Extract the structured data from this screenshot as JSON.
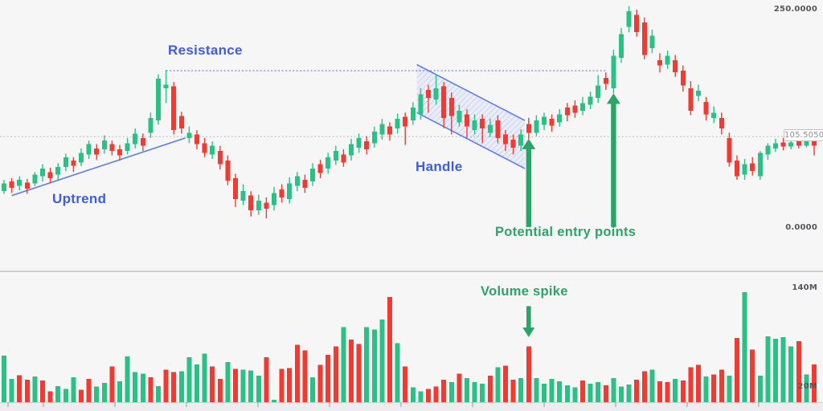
{
  "chart_data": {
    "type": "candlestick_with_volume",
    "description_pattern": "cup and handle breakout illustration",
    "price_axis": {
      "max": 250,
      "min": 0,
      "label_max": "250.0000",
      "label_min": "0.0000",
      "last_price": 105.505,
      "last_price_label": "105.5050"
    },
    "volume_axis": {
      "label_high": "140M",
      "high_value": 140,
      "label_low": "20M",
      "low_value": 20
    },
    "candles": [
      [
        43,
        56,
        40,
        52
      ],
      [
        54,
        58,
        41,
        47
      ],
      [
        49,
        60,
        44,
        56
      ],
      [
        53,
        57,
        40,
        46
      ],
      [
        52,
        65,
        49,
        62
      ],
      [
        60,
        74,
        54,
        69
      ],
      [
        65,
        70,
        52,
        58
      ],
      [
        62,
        75,
        56,
        71
      ],
      [
        71,
        86,
        66,
        82
      ],
      [
        78,
        82,
        65,
        72
      ],
      [
        76,
        92,
        72,
        87
      ],
      [
        85,
        101,
        80,
        97
      ],
      [
        92,
        97,
        79,
        85
      ],
      [
        91,
        107,
        86,
        101
      ],
      [
        97,
        101,
        84,
        89
      ],
      [
        91,
        96,
        78,
        84
      ],
      [
        89,
        104,
        85,
        98
      ],
      [
        97,
        115,
        92,
        109
      ],
      [
        104,
        109,
        89,
        95
      ],
      [
        110,
        133,
        104,
        127
      ],
      [
        124,
        177,
        119,
        172
      ],
      [
        161,
        182,
        144,
        165
      ],
      [
        163,
        168,
        108,
        113
      ],
      [
        129,
        134,
        109,
        115
      ],
      [
        104,
        117,
        98,
        110
      ],
      [
        108,
        113,
        91,
        97
      ],
      [
        98,
        104,
        82,
        87
      ],
      [
        85,
        100,
        80,
        95
      ],
      [
        89,
        95,
        68,
        74
      ],
      [
        78,
        84,
        50,
        55
      ],
      [
        58,
        63,
        25,
        34
      ],
      [
        32,
        51,
        27,
        43
      ],
      [
        38,
        43,
        14,
        21
      ],
      [
        21,
        39,
        16,
        32
      ],
      [
        30,
        36,
        12,
        23
      ],
      [
        27,
        48,
        21,
        41
      ],
      [
        45,
        51,
        30,
        36
      ],
      [
        34,
        59,
        29,
        52
      ],
      [
        49,
        65,
        43,
        60
      ],
      [
        56,
        62,
        41,
        47
      ],
      [
        54,
        75,
        49,
        69
      ],
      [
        74,
        79,
        58,
        64
      ],
      [
        69,
        87,
        63,
        82
      ],
      [
        78,
        95,
        73,
        89
      ],
      [
        85,
        91,
        71,
        76
      ],
      [
        84,
        103,
        78,
        97
      ],
      [
        93,
        109,
        87,
        104
      ],
      [
        100,
        106,
        85,
        91
      ],
      [
        98,
        117,
        93,
        111
      ],
      [
        108,
        126,
        102,
        120
      ],
      [
        117,
        122,
        101,
        108
      ],
      [
        115,
        132,
        109,
        126
      ],
      [
        128,
        133,
        96,
        117
      ],
      [
        124,
        145,
        119,
        139
      ],
      [
        131,
        161,
        125,
        154
      ],
      [
        159,
        165,
        133,
        150
      ],
      [
        148,
        177,
        142,
        161
      ],
      [
        163,
        168,
        115,
        127
      ],
      [
        150,
        156,
        108,
        129
      ],
      [
        122,
        142,
        117,
        135
      ],
      [
        131,
        137,
        104,
        117
      ],
      [
        113,
        131,
        108,
        124
      ],
      [
        126,
        131,
        98,
        115
      ],
      [
        110,
        126,
        105,
        119
      ],
      [
        124,
        130,
        98,
        104
      ],
      [
        108,
        113,
        89,
        97
      ],
      [
        102,
        108,
        85,
        93
      ],
      [
        95,
        114,
        89,
        108
      ],
      [
        120,
        127,
        103,
        110
      ],
      [
        110,
        130,
        106,
        124
      ],
      [
        119,
        133,
        113,
        128
      ],
      [
        126,
        131,
        111,
        118
      ],
      [
        122,
        137,
        117,
        131
      ],
      [
        139,
        144,
        123,
        130
      ],
      [
        141,
        147,
        127,
        133
      ],
      [
        135,
        151,
        130,
        144
      ],
      [
        142,
        157,
        137,
        151
      ],
      [
        150,
        176,
        144,
        164
      ],
      [
        173,
        179,
        159,
        166
      ],
      [
        161,
        205,
        155,
        198
      ],
      [
        196,
        230,
        190,
        223
      ],
      [
        231,
        255,
        225,
        249
      ],
      [
        245,
        251,
        220,
        225
      ],
      [
        236,
        242,
        194,
        199
      ],
      [
        207,
        228,
        201,
        221
      ],
      [
        193,
        201,
        179,
        187
      ],
      [
        188,
        204,
        183,
        198
      ],
      [
        193,
        199,
        174,
        179
      ],
      [
        181,
        187,
        157,
        164
      ],
      [
        161,
        169,
        130,
        135
      ],
      [
        152,
        165,
        146,
        158
      ],
      [
        145,
        151,
        124,
        131
      ],
      [
        127,
        140,
        121,
        133
      ],
      [
        127,
        133,
        108,
        115
      ],
      [
        104,
        110,
        71,
        76
      ],
      [
        78,
        84,
        56,
        60
      ],
      [
        62,
        80,
        56,
        74
      ],
      [
        75,
        82,
        61,
        66
      ],
      [
        60,
        89,
        56,
        87
      ],
      [
        85,
        98,
        79,
        95
      ],
      [
        92,
        103,
        88,
        98
      ],
      [
        99,
        104,
        90,
        94
      ],
      [
        94,
        104,
        91,
        99
      ],
      [
        100,
        105,
        92,
        95
      ],
      [
        95,
        106,
        93,
        102
      ],
      [
        101,
        105,
        84,
        95
      ]
    ],
    "volumes": [
      [
        60,
        "g"
      ],
      [
        30,
        "g"
      ],
      [
        35,
        "r"
      ],
      [
        29,
        "r"
      ],
      [
        33,
        "g"
      ],
      [
        28,
        "r"
      ],
      [
        14,
        "r"
      ],
      [
        21,
        "g"
      ],
      [
        17,
        "g"
      ],
      [
        32,
        "g"
      ],
      [
        16,
        "r"
      ],
      [
        30,
        "r"
      ],
      [
        20,
        "g"
      ],
      [
        25,
        "g"
      ],
      [
        46,
        "r"
      ],
      [
        27,
        "g"
      ],
      [
        59,
        "g"
      ],
      [
        39,
        "g"
      ],
      [
        37,
        "g"
      ],
      [
        32,
        "r"
      ],
      [
        21,
        "g"
      ],
      [
        42,
        "r"
      ],
      [
        39,
        "r"
      ],
      [
        40,
        "g"
      ],
      [
        58,
        "g"
      ],
      [
        49,
        "g"
      ],
      [
        63,
        "g"
      ],
      [
        46,
        "r"
      ],
      [
        30,
        "r"
      ],
      [
        52,
        "g"
      ],
      [
        43,
        "r"
      ],
      [
        42,
        "g"
      ],
      [
        41,
        "g"
      ],
      [
        34,
        "g"
      ],
      [
        58,
        "r"
      ],
      [
        3,
        "g"
      ],
      [
        43,
        "r"
      ],
      [
        44,
        "r"
      ],
      [
        74,
        "r"
      ],
      [
        67,
        "r"
      ],
      [
        32,
        "g"
      ],
      [
        48,
        "r"
      ],
      [
        61,
        "r"
      ],
      [
        72,
        "r"
      ],
      [
        97,
        "g"
      ],
      [
        81,
        "r"
      ],
      [
        75,
        "r"
      ],
      [
        97,
        "g"
      ],
      [
        94,
        "g"
      ],
      [
        107,
        "g"
      ],
      [
        136,
        "r"
      ],
      [
        76,
        "g"
      ],
      [
        46,
        "r"
      ],
      [
        19,
        "g"
      ],
      [
        14,
        "g"
      ],
      [
        17,
        "r"
      ],
      [
        20,
        "r"
      ],
      [
        29,
        "r"
      ],
      [
        26,
        "g"
      ],
      [
        37,
        "r"
      ],
      [
        31,
        "g"
      ],
      [
        26,
        "g"
      ],
      [
        24,
        "g"
      ],
      [
        34,
        "r"
      ],
      [
        45,
        "g"
      ],
      [
        47,
        "r"
      ],
      [
        29,
        "r"
      ],
      [
        31,
        "g"
      ],
      [
        72,
        "r"
      ],
      [
        31,
        "g"
      ],
      [
        24,
        "g"
      ],
      [
        30,
        "g"
      ],
      [
        27,
        "g"
      ],
      [
        22,
        "g"
      ],
      [
        19,
        "g"
      ],
      [
        28,
        "r"
      ],
      [
        24,
        "g"
      ],
      [
        26,
        "g"
      ],
      [
        22,
        "r"
      ],
      [
        31,
        "g"
      ],
      [
        20,
        "g"
      ],
      [
        23,
        "g"
      ],
      [
        29,
        "r"
      ],
      [
        40,
        "r"
      ],
      [
        42,
        "g"
      ],
      [
        27,
        "r"
      ],
      [
        26,
        "r"
      ],
      [
        30,
        "g"
      ],
      [
        28,
        "r"
      ],
      [
        45,
        "r"
      ],
      [
        48,
        "r"
      ],
      [
        33,
        "g"
      ],
      [
        36,
        "r"
      ],
      [
        42,
        "r"
      ],
      [
        34,
        "g"
      ],
      [
        83,
        "r"
      ],
      [
        142,
        "g"
      ],
      [
        68,
        "r"
      ],
      [
        34,
        "g"
      ],
      [
        85,
        "g"
      ],
      [
        82,
        "g"
      ],
      [
        84,
        "g"
      ],
      [
        72,
        "g"
      ],
      [
        79,
        "r"
      ],
      [
        36,
        "g"
      ],
      [
        49,
        "r"
      ]
    ],
    "resistance": {
      "label": "Resistance",
      "price": 181,
      "from_candle": 21,
      "to_candle": 78
    },
    "uptrend": {
      "label": "Uptrend",
      "from": {
        "candle": 1,
        "price": 38
      },
      "to": {
        "candle": 23.5,
        "price": 104
      }
    },
    "handle_channel": {
      "label": "Handle",
      "from_candle": 53.5,
      "to_candle": 67.5,
      "upper_start_price": 188,
      "upper_end_price": 124,
      "depth": 55
    },
    "entry_label": "Potential entry points",
    "entry_arrows": [
      {
        "candle": 68,
        "tip_price": 103,
        "tail_price": 2
      },
      {
        "candle": 79,
        "tip_price": 155,
        "tail_price": 2
      }
    ],
    "volume_spike": {
      "label": "Volume spike",
      "candle": 68,
      "arrow_tail_volume": 124,
      "arrow_tip_volume": 84
    },
    "colors": {
      "up": "#2bc186",
      "down": "#f13a31",
      "blue_annotation": "#3f5be0",
      "blue_line": "#5b79e8",
      "blue_dotted": "#7c90ec",
      "green_annotation": "#2ba567",
      "grid_dotted": "#b4b4b8",
      "separator": "#c2c2c6",
      "axis_text": "#55565a",
      "background": "#f6f6f7"
    }
  }
}
